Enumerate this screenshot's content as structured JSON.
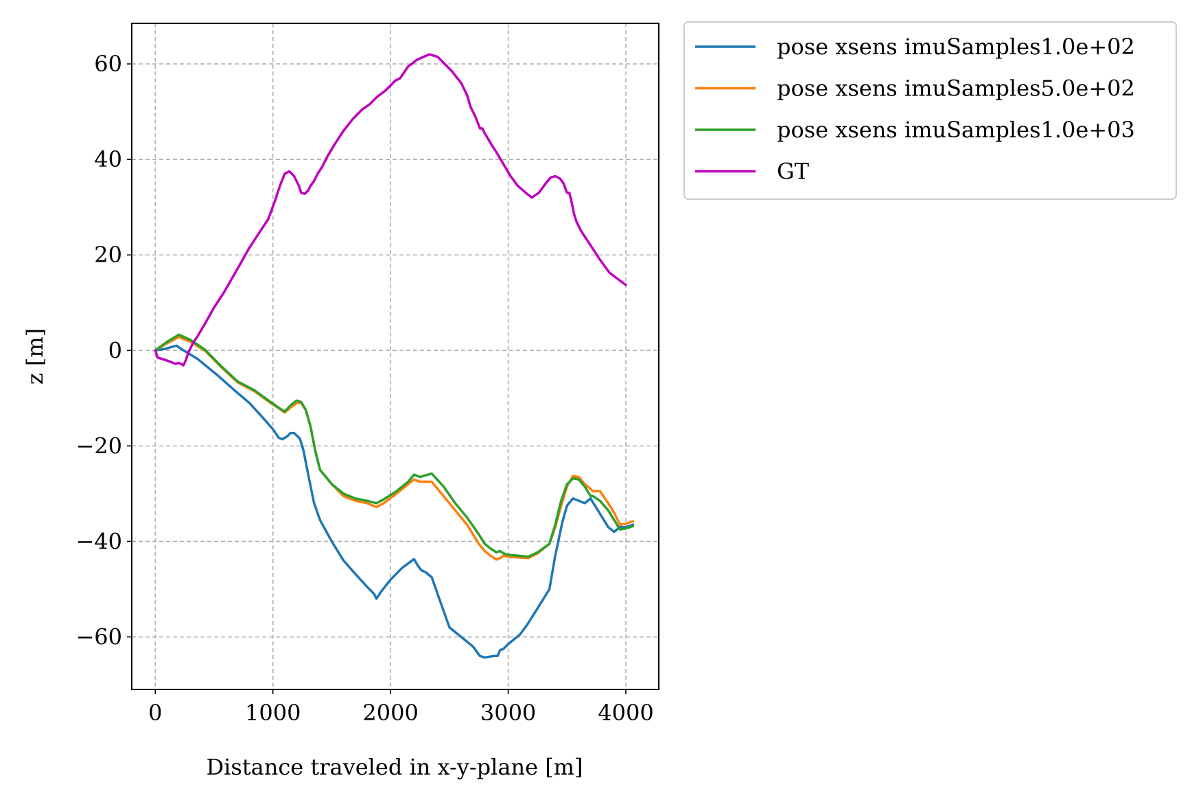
{
  "chart_data": {
    "type": "line",
    "title": "",
    "xlabel": "Distance traveled in x-y-plane [m]",
    "ylabel": "z [m]",
    "xlim": [
      -200,
      4280
    ],
    "ylim": [
      -71,
      68.5
    ],
    "xticks": [
      0,
      1000,
      2000,
      3000,
      4000
    ],
    "yticks": [
      -60,
      -40,
      -20,
      0,
      20,
      40,
      60
    ],
    "xtick_labels": [
      "0",
      "1000",
      "2000",
      "3000",
      "4000"
    ],
    "ytick_labels": [
      "−60",
      "−40",
      "−20",
      "0",
      "20",
      "40",
      "60"
    ],
    "grid": true,
    "legend_position": "outside upper-right",
    "series": [
      {
        "name": "pose xsens imuSamples1.0e+02",
        "color": "#1f77b4",
        "x": [
          0,
          80,
          180,
          210,
          260,
          360,
          520,
          680,
          800,
          900,
          1000,
          1050,
          1080,
          1120,
          1150,
          1180,
          1230,
          1260,
          1300,
          1350,
          1400,
          1500,
          1600,
          1700,
          1800,
          1860,
          1880,
          1920,
          2000,
          2100,
          2200,
          2230,
          2260,
          2300,
          2350,
          2400,
          2450,
          2500,
          2600,
          2700,
          2760,
          2800,
          2880,
          2910,
          2930,
          2960,
          3000,
          3100,
          3160,
          3250,
          3350,
          3400,
          3460,
          3500,
          3550,
          3600,
          3650,
          3700,
          3750,
          3800,
          3850,
          3900,
          3950,
          4000,
          4060
        ],
        "y": [
          0,
          0.3,
          1,
          0.5,
          -0.3,
          -1.8,
          -5,
          -8.5,
          -11,
          -13.7,
          -16.5,
          -18.3,
          -18.6,
          -18,
          -17.3,
          -17.3,
          -18.5,
          -21,
          -26,
          -32,
          -35.5,
          -40,
          -44,
          -46.8,
          -49.5,
          -51,
          -52,
          -50.5,
          -48,
          -45.5,
          -43.7,
          -45,
          -46,
          -46.5,
          -47.5,
          -51,
          -54.5,
          -58,
          -60,
          -62,
          -64,
          -64.3,
          -64,
          -64,
          -62.8,
          -62.5,
          -61.5,
          -59.5,
          -57.5,
          -54,
          -50,
          -43,
          -36,
          -32.5,
          -31,
          -31.5,
          -32,
          -31,
          -33,
          -35,
          -37,
          -38,
          -37,
          -37,
          -36.5
        ]
      },
      {
        "name": "pose xsens imuSamples5.0e+02",
        "color": "#ff7f0e",
        "x": [
          0,
          100,
          200,
          300,
          420,
          560,
          700,
          840,
          980,
          1060,
          1100,
          1150,
          1200,
          1240,
          1280,
          1320,
          1360,
          1400,
          1500,
          1600,
          1700,
          1800,
          1880,
          1940,
          2050,
          2150,
          2200,
          2250,
          2350,
          2450,
          2550,
          2650,
          2750,
          2800,
          2850,
          2900,
          2930,
          2960,
          3000,
          3170,
          3250,
          3350,
          3400,
          3450,
          3500,
          3550,
          3600,
          3650,
          3700,
          3720,
          3780,
          3850,
          3900,
          3950,
          4000,
          4060
        ],
        "y": [
          0,
          1.5,
          2.8,
          1.8,
          0,
          -3.5,
          -6.7,
          -8.5,
          -11,
          -12.3,
          -13,
          -12,
          -11,
          -11,
          -12.5,
          -16,
          -21,
          -25,
          -28,
          -30.5,
          -31.5,
          -32,
          -32.8,
          -32,
          -30,
          -28,
          -27,
          -27.5,
          -27.5,
          -30.5,
          -33.5,
          -36.5,
          -40.5,
          -42,
          -43,
          -43.8,
          -43.5,
          -43,
          -43.2,
          -43.5,
          -42.5,
          -40.5,
          -37,
          -32.5,
          -28.5,
          -26.3,
          -26.5,
          -28,
          -29,
          -29.5,
          -29.5,
          -32,
          -34,
          -36.5,
          -36.3,
          -35.8
        ]
      },
      {
        "name": "pose xsens imuSamples1.0e+03",
        "color": "#2ca02c",
        "x": [
          0,
          100,
          200,
          300,
          420,
          560,
          700,
          840,
          980,
          1060,
          1100,
          1150,
          1200,
          1240,
          1280,
          1320,
          1360,
          1400,
          1500,
          1600,
          1700,
          1800,
          1880,
          1940,
          2050,
          2150,
          2200,
          2250,
          2350,
          2450,
          2550,
          2650,
          2750,
          2800,
          2850,
          2900,
          2930,
          2960,
          3000,
          3170,
          3250,
          3350,
          3400,
          3450,
          3500,
          3550,
          3600,
          3650,
          3700,
          3720,
          3780,
          3850,
          3900,
          3950,
          4000,
          4060
        ],
        "y": [
          0,
          1.8,
          3.3,
          2.2,
          0.2,
          -3.3,
          -6.5,
          -8.3,
          -10.8,
          -12.2,
          -12.8,
          -11.5,
          -10.5,
          -10.8,
          -12.5,
          -16,
          -21,
          -25,
          -28,
          -30,
          -31,
          -31.5,
          -32,
          -31.2,
          -29.5,
          -27.5,
          -26,
          -26.5,
          -25.8,
          -28.5,
          -32,
          -35,
          -38.5,
          -40.5,
          -41.5,
          -42.3,
          -42,
          -42.5,
          -42.8,
          -43.2,
          -42.3,
          -40.5,
          -36.5,
          -31.5,
          -28,
          -26.8,
          -27,
          -28.5,
          -30.5,
          -30.5,
          -31.5,
          -33.5,
          -35.5,
          -37.5,
          -37.3,
          -36.8
        ]
      },
      {
        "name": "GT",
        "color": "#bf00bf",
        "x": [
          0,
          20,
          60,
          120,
          170,
          200,
          240,
          260,
          280,
          320,
          360,
          420,
          500,
          580,
          650,
          720,
          800,
          880,
          960,
          1020,
          1060,
          1100,
          1140,
          1180,
          1220,
          1240,
          1270,
          1300,
          1320,
          1350,
          1380,
          1420,
          1460,
          1520,
          1600,
          1680,
          1760,
          1820,
          1880,
          1960,
          2040,
          2080,
          2150,
          2180,
          2220,
          2280,
          2330,
          2400,
          2440,
          2480,
          2520,
          2600,
          2650,
          2680,
          2720,
          2760,
          2780,
          2800,
          2860,
          2900,
          2960,
          3020,
          3080,
          3150,
          3200,
          3260,
          3290,
          3320,
          3360,
          3400,
          3440,
          3470,
          3500,
          3520,
          3540,
          3560,
          3580,
          3620,
          3700,
          3780,
          3860,
          3940,
          4000
        ],
        "y": [
          0,
          -1.5,
          -1.8,
          -2.3,
          -2.8,
          -2.6,
          -3.1,
          -2,
          -0.5,
          1.5,
          3,
          5.5,
          9,
          12,
          15,
          18,
          21.5,
          24.5,
          27.5,
          31.5,
          34.5,
          37,
          37.5,
          36.5,
          34.5,
          33,
          32.8,
          33.5,
          34.5,
          35.5,
          37,
          38.5,
          40.5,
          43,
          46,
          48.5,
          50.5,
          51.5,
          53,
          54.5,
          56.5,
          57,
          59.5,
          60,
          60.8,
          61.5,
          62,
          61.5,
          60.5,
          59.5,
          58.5,
          56,
          53.5,
          51,
          49,
          46.5,
          46.5,
          45.5,
          43,
          41.5,
          39,
          36.5,
          34.5,
          33,
          32,
          33,
          34,
          35,
          36.2,
          36.5,
          36,
          35,
          33,
          33,
          31,
          28.5,
          27,
          25,
          22,
          19,
          16.3,
          14.8,
          13.7
        ]
      }
    ]
  }
}
